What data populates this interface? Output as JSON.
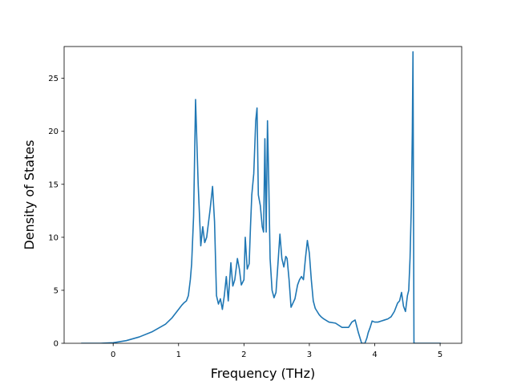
{
  "chart_data": {
    "type": "line",
    "title": "",
    "xlabel": "Frequency (THz)",
    "ylabel": "Density of States",
    "xlim": [
      -0.75,
      5.33
    ],
    "ylim": [
      0,
      28
    ],
    "xticks": [
      0,
      1,
      2,
      3,
      4,
      5
    ],
    "yticks": [
      0,
      5,
      10,
      15,
      20,
      25
    ],
    "grid": false,
    "legend": "none",
    "series": [
      {
        "color": "#1f77b4",
        "x": [
          -0.48,
          -0.2,
          0.0,
          0.2,
          0.4,
          0.6,
          0.8,
          0.9,
          0.95,
          1.0,
          1.05,
          1.08,
          1.12,
          1.15,
          1.18,
          1.2,
          1.23,
          1.26,
          1.3,
          1.34,
          1.37,
          1.4,
          1.43,
          1.48,
          1.52,
          1.55,
          1.58,
          1.61,
          1.64,
          1.67,
          1.7,
          1.73,
          1.76,
          1.8,
          1.83,
          1.86,
          1.9,
          1.93,
          1.96,
          2.0,
          2.02,
          2.05,
          2.08,
          2.1,
          2.12,
          2.15,
          2.18,
          2.2,
          2.22,
          2.25,
          2.28,
          2.3,
          2.32,
          2.34,
          2.36,
          2.38,
          2.4,
          2.43,
          2.46,
          2.49,
          2.52,
          2.55,
          2.58,
          2.61,
          2.64,
          2.66,
          2.69,
          2.72,
          2.75,
          2.78,
          2.82,
          2.85,
          2.88,
          2.91,
          2.94,
          2.97,
          3.0,
          3.03,
          3.06,
          3.09,
          3.12,
          3.15,
          3.18,
          3.22,
          3.3,
          3.4,
          3.5,
          3.6,
          3.65,
          3.7,
          3.75,
          3.8,
          3.85,
          3.88,
          3.9,
          3.93,
          3.96,
          4.0,
          4.05,
          4.1,
          4.15,
          4.2,
          4.25,
          4.3,
          4.35,
          4.38,
          4.41,
          4.44,
          4.47,
          4.5,
          4.52,
          4.54,
          4.56,
          4.575,
          4.585,
          4.6,
          4.61,
          4.7,
          5.0
        ],
        "values": [
          0.0,
          0.0,
          0.05,
          0.25,
          0.6,
          1.1,
          1.8,
          2.4,
          2.8,
          3.2,
          3.6,
          3.8,
          4.0,
          4.5,
          6.0,
          7.5,
          12.0,
          23.0,
          15.0,
          9.2,
          11.0,
          9.5,
          10.0,
          12.5,
          14.8,
          11.5,
          4.5,
          3.7,
          4.2,
          3.2,
          4.5,
          6.3,
          4.0,
          7.6,
          5.4,
          6.0,
          8.0,
          7.0,
          5.5,
          6.0,
          10.0,
          7.0,
          7.5,
          11.0,
          14.0,
          16.0,
          21.0,
          22.2,
          14.0,
          13.0,
          11.0,
          10.5,
          19.3,
          10.5,
          21.0,
          15.0,
          8.0,
          5.0,
          4.3,
          4.8,
          7.5,
          10.3,
          8.0,
          7.2,
          8.2,
          8.0,
          6.0,
          3.4,
          3.8,
          4.2,
          5.5,
          6.0,
          6.3,
          6.0,
          8.0,
          9.7,
          8.5,
          6.0,
          4.0,
          3.3,
          3.0,
          2.7,
          2.5,
          2.3,
          2.0,
          1.9,
          1.5,
          1.5,
          2.0,
          2.2,
          1.0,
          0.0,
          0.0,
          0.5,
          1.0,
          1.5,
          2.1,
          2.0,
          2.0,
          2.1,
          2.2,
          2.3,
          2.5,
          3.0,
          3.8,
          4.0,
          4.8,
          3.5,
          3.0,
          4.5,
          5.0,
          8.0,
          13.0,
          20.0,
          27.5,
          0.0,
          0.0,
          0.0,
          0.0
        ]
      }
    ]
  }
}
